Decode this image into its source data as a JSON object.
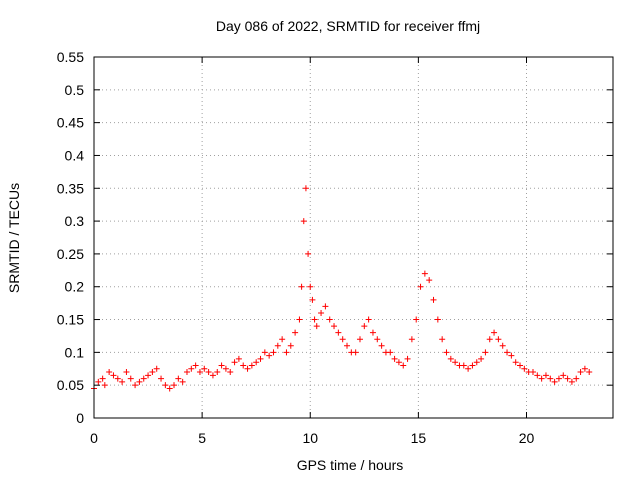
{
  "chart_data": {
    "type": "scatter",
    "title": "Day 086 of 2022, SRMTID for receiver ffmj",
    "xlabel": "GPS time / hours",
    "ylabel": "SRMTID / TECUs",
    "xlim": [
      0,
      24
    ],
    "ylim": [
      0,
      0.55
    ],
    "xticks": [
      0,
      5,
      10,
      15,
      20
    ],
    "yticks": [
      0,
      0.05,
      0.1,
      0.15,
      0.2,
      0.25,
      0.3,
      0.35,
      0.4,
      0.45,
      0.5,
      0.55
    ],
    "grid": true,
    "marker": "+",
    "colors": {
      "series": "#ff0000",
      "grid": "#a0a0a0",
      "axes": "#000000"
    },
    "series": [
      {
        "x": [
          0.0,
          0.2,
          0.4,
          0.5,
          0.7,
          0.9,
          1.1,
          1.3,
          1.5,
          1.7,
          1.9,
          2.1,
          2.3,
          2.5,
          2.7,
          2.9,
          3.1,
          3.3,
          3.5,
          3.7,
          3.9,
          4.1,
          4.3,
          4.5,
          4.7,
          4.9,
          5.1,
          5.3,
          5.5,
          5.7,
          5.9,
          6.1,
          6.3,
          6.5,
          6.7,
          6.9,
          7.1,
          7.3,
          7.5,
          7.7,
          7.9,
          8.1,
          8.3,
          8.5,
          8.7,
          8.9,
          9.1,
          9.3,
          9.5,
          9.6,
          9.7,
          9.8,
          9.9,
          10.0,
          10.1,
          10.2,
          10.3,
          10.5,
          10.7,
          10.9,
          11.1,
          11.3,
          11.5,
          11.7,
          11.9,
          12.1,
          12.3,
          12.5,
          12.7,
          12.9,
          13.1,
          13.3,
          13.5,
          13.7,
          13.9,
          14.1,
          14.3,
          14.5,
          14.7,
          14.9,
          15.1,
          15.3,
          15.5,
          15.7,
          15.9,
          16.1,
          16.3,
          16.5,
          16.7,
          16.9,
          17.1,
          17.3,
          17.5,
          17.7,
          17.9,
          18.1,
          18.3,
          18.5,
          18.7,
          18.9,
          19.1,
          19.3,
          19.5,
          19.7,
          19.9,
          20.1,
          20.3,
          20.5,
          20.7,
          20.9,
          21.1,
          21.3,
          21.5,
          21.7,
          21.9,
          22.1,
          22.3,
          22.5,
          22.7,
          22.9
        ],
        "y": [
          0.045,
          0.055,
          0.06,
          0.05,
          0.07,
          0.065,
          0.06,
          0.055,
          0.07,
          0.06,
          0.05,
          0.055,
          0.06,
          0.065,
          0.07,
          0.075,
          0.06,
          0.05,
          0.045,
          0.05,
          0.06,
          0.055,
          0.07,
          0.075,
          0.08,
          0.07,
          0.075,
          0.07,
          0.065,
          0.07,
          0.08,
          0.075,
          0.07,
          0.085,
          0.09,
          0.08,
          0.075,
          0.08,
          0.085,
          0.09,
          0.1,
          0.095,
          0.1,
          0.11,
          0.12,
          0.1,
          0.11,
          0.13,
          0.15,
          0.2,
          0.3,
          0.35,
          0.25,
          0.2,
          0.18,
          0.15,
          0.14,
          0.16,
          0.17,
          0.15,
          0.14,
          0.13,
          0.12,
          0.11,
          0.1,
          0.1,
          0.12,
          0.14,
          0.15,
          0.13,
          0.12,
          0.11,
          0.1,
          0.1,
          0.09,
          0.085,
          0.08,
          0.09,
          0.12,
          0.15,
          0.2,
          0.22,
          0.21,
          0.18,
          0.15,
          0.12,
          0.1,
          0.09,
          0.085,
          0.08,
          0.08,
          0.075,
          0.08,
          0.085,
          0.09,
          0.1,
          0.12,
          0.13,
          0.12,
          0.11,
          0.1,
          0.095,
          0.085,
          0.08,
          0.075,
          0.07,
          0.07,
          0.065,
          0.06,
          0.065,
          0.06,
          0.055,
          0.06,
          0.065,
          0.06,
          0.055,
          0.06,
          0.07,
          0.075,
          0.07
        ]
      }
    ]
  }
}
